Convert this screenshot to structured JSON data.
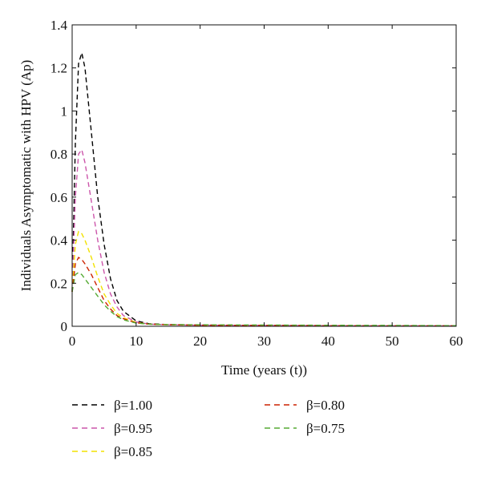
{
  "chart_data": {
    "type": "line",
    "title": "",
    "xlabel": "Time (years (t))",
    "ylabel": "Individuals Asymptomatic with HPV (Ap)",
    "xlim": [
      0,
      60
    ],
    "ylim": [
      0,
      1.4
    ],
    "xticks": [
      "0",
      "10",
      "20",
      "30",
      "40",
      "50",
      "60"
    ],
    "yticks": [
      "0",
      "0.2",
      "0.4",
      "0.6",
      "0.8",
      "1",
      "1.2",
      "1.4"
    ],
    "grid": false,
    "legend_position": "bottom",
    "series": [
      {
        "name": "β=1.00",
        "color": "#000000",
        "x": [
          0,
          0.5,
          1,
          1.5,
          2,
          3,
          4,
          5,
          6,
          7,
          8,
          10,
          12,
          15,
          20,
          30,
          40,
          50,
          60
        ],
        "y": [
          0.16,
          0.85,
          1.22,
          1.27,
          1.2,
          0.9,
          0.6,
          0.38,
          0.22,
          0.12,
          0.07,
          0.025,
          0.012,
          0.008,
          0.006,
          0.004,
          0.003,
          0.002,
          0.002
        ]
      },
      {
        "name": "β=0.95",
        "color": "#cc55aa",
        "x": [
          0,
          0.5,
          1,
          1.5,
          2,
          3,
          4,
          5,
          6,
          7,
          8,
          10,
          12,
          15,
          20,
          30,
          40,
          50,
          60
        ],
        "y": [
          0.16,
          0.6,
          0.8,
          0.82,
          0.76,
          0.58,
          0.4,
          0.25,
          0.15,
          0.09,
          0.05,
          0.02,
          0.01,
          0.007,
          0.005,
          0.004,
          0.003,
          0.002,
          0.002
        ]
      },
      {
        "name": "β=0.85",
        "color": "#f2e200",
        "x": [
          0,
          0.5,
          1,
          1.5,
          2,
          3,
          4,
          5,
          6,
          7,
          8,
          10,
          12,
          15,
          20,
          30,
          40,
          50,
          60
        ],
        "y": [
          0.16,
          0.38,
          0.44,
          0.43,
          0.4,
          0.32,
          0.23,
          0.15,
          0.1,
          0.06,
          0.04,
          0.018,
          0.01,
          0.007,
          0.005,
          0.004,
          0.003,
          0.002,
          0.002
        ]
      },
      {
        "name": "β=0.80",
        "color": "#cc2200",
        "x": [
          0,
          0.5,
          1,
          1.5,
          2,
          3,
          4,
          5,
          6,
          7,
          8,
          10,
          12,
          15,
          20,
          30,
          40,
          50,
          60
        ],
        "y": [
          0.16,
          0.29,
          0.32,
          0.31,
          0.29,
          0.24,
          0.18,
          0.12,
          0.08,
          0.05,
          0.035,
          0.016,
          0.01,
          0.007,
          0.005,
          0.004,
          0.003,
          0.002,
          0.002
        ]
      },
      {
        "name": "β=0.75",
        "color": "#55aa33",
        "x": [
          0,
          0.5,
          1,
          1.5,
          2,
          3,
          4,
          5,
          6,
          7,
          8,
          10,
          12,
          15,
          20,
          30,
          40,
          50,
          60
        ],
        "y": [
          0.16,
          0.24,
          0.25,
          0.24,
          0.22,
          0.18,
          0.14,
          0.1,
          0.07,
          0.045,
          0.03,
          0.015,
          0.01,
          0.008,
          0.007,
          0.006,
          0.005,
          0.004,
          0.003
        ]
      }
    ]
  }
}
